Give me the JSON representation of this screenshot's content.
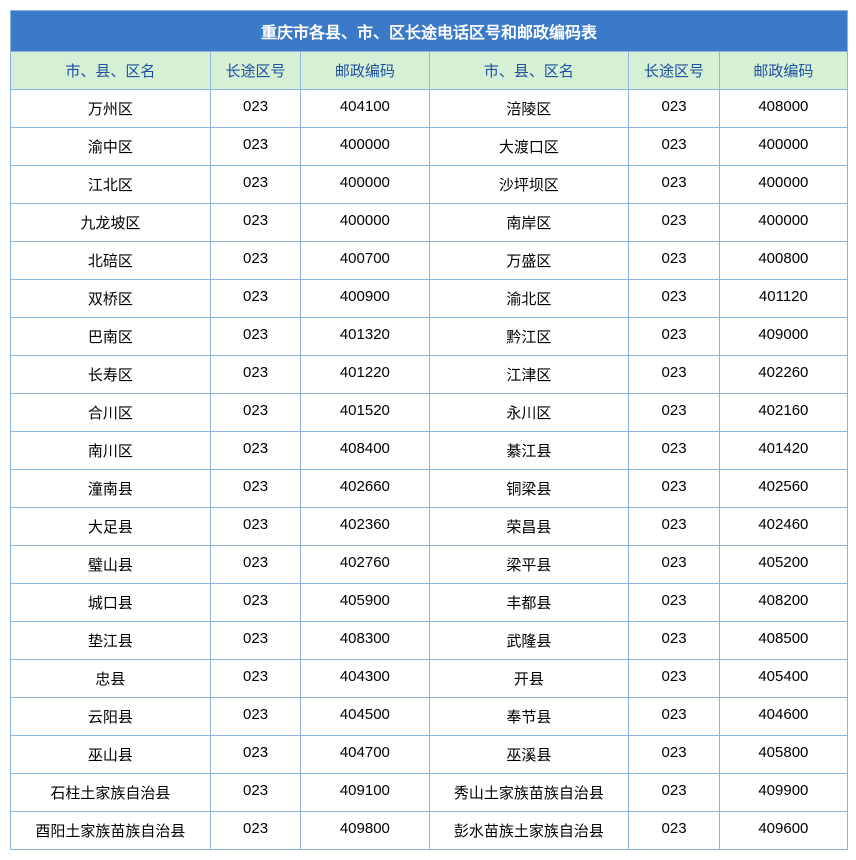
{
  "title": "重庆市各县、市、区长途电话区号和邮政编码表",
  "headers": {
    "name": "市、县、区名",
    "area": "长途区号",
    "post": "邮政编码"
  },
  "colors": {
    "title_bg": "#3a7ac8",
    "title_text": "#ffffff",
    "header_bg": "#d6f0d6",
    "header_text": "#2050a0",
    "border": "#8cb4e0",
    "cell_text": "#000000"
  },
  "rows": [
    {
      "l_name": "万州区",
      "l_area": "023",
      "l_post": "404100",
      "r_name": "涪陵区",
      "r_area": "023",
      "r_post": "408000"
    },
    {
      "l_name": "渝中区",
      "l_area": "023",
      "l_post": "400000",
      "r_name": "大渡口区",
      "r_area": "023",
      "r_post": "400000"
    },
    {
      "l_name": "江北区",
      "l_area": "023",
      "l_post": "400000",
      "r_name": "沙坪坝区",
      "r_area": "023",
      "r_post": "400000"
    },
    {
      "l_name": "九龙坡区",
      "l_area": "023",
      "l_post": "400000",
      "r_name": "南岸区",
      "r_area": "023",
      "r_post": "400000"
    },
    {
      "l_name": "北碚区",
      "l_area": "023",
      "l_post": "400700",
      "r_name": "万盛区",
      "r_area": "023",
      "r_post": "400800"
    },
    {
      "l_name": "双桥区",
      "l_area": "023",
      "l_post": "400900",
      "r_name": "渝北区",
      "r_area": "023",
      "r_post": "401120"
    },
    {
      "l_name": "巴南区",
      "l_area": "023",
      "l_post": "401320",
      "r_name": "黔江区",
      "r_area": "023",
      "r_post": "409000"
    },
    {
      "l_name": "长寿区",
      "l_area": "023",
      "l_post": "401220",
      "r_name": "江津区",
      "r_area": "023",
      "r_post": "402260"
    },
    {
      "l_name": "合川区",
      "l_area": "023",
      "l_post": "401520",
      "r_name": "永川区",
      "r_area": "023",
      "r_post": "402160"
    },
    {
      "l_name": "南川区",
      "l_area": "023",
      "l_post": "408400",
      "r_name": "綦江县",
      "r_area": "023",
      "r_post": "401420"
    },
    {
      "l_name": "潼南县",
      "l_area": "023",
      "l_post": "402660",
      "r_name": "铜梁县",
      "r_area": "023",
      "r_post": "402560"
    },
    {
      "l_name": "大足县",
      "l_area": "023",
      "l_post": "402360",
      "r_name": "荣昌县",
      "r_area": "023",
      "r_post": "402460"
    },
    {
      "l_name": "璧山县",
      "l_area": "023",
      "l_post": "402760",
      "r_name": "梁平县",
      "r_area": "023",
      "r_post": "405200"
    },
    {
      "l_name": "城口县",
      "l_area": "023",
      "l_post": "405900",
      "r_name": "丰都县",
      "r_area": "023",
      "r_post": "408200"
    },
    {
      "l_name": "垫江县",
      "l_area": "023",
      "l_post": "408300",
      "r_name": "武隆县",
      "r_area": "023",
      "r_post": "408500"
    },
    {
      "l_name": "忠县",
      "l_area": "023",
      "l_post": "404300",
      "r_name": "开县",
      "r_area": "023",
      "r_post": "405400"
    },
    {
      "l_name": "云阳县",
      "l_area": "023",
      "l_post": "404500",
      "r_name": "奉节县",
      "r_area": "023",
      "r_post": "404600"
    },
    {
      "l_name": "巫山县",
      "l_area": "023",
      "l_post": "404700",
      "r_name": "巫溪县",
      "r_area": "023",
      "r_post": "405800"
    },
    {
      "l_name": "石柱土家族自治县",
      "l_area": "023",
      "l_post": "409100",
      "r_name": "秀山土家族苗族自治县",
      "r_area": "023",
      "r_post": "409900"
    },
    {
      "l_name": "酉阳土家族苗族自治县",
      "l_area": "023",
      "l_post": "409800",
      "r_name": "彭水苗族土家族自治县",
      "r_area": "023",
      "r_post": "409600"
    }
  ]
}
